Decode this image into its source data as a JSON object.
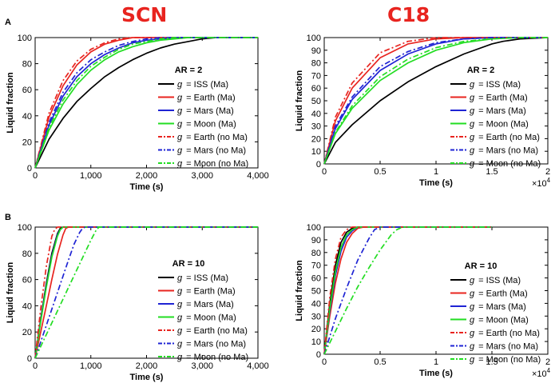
{
  "column_titles": [
    "SCN",
    "C18"
  ],
  "row_labels": [
    "A",
    "B"
  ],
  "colors": {
    "title_red": "#e8241f",
    "iss": "#000000",
    "earth": "#e8241f",
    "mars": "#1f24d4",
    "moon": "#22dd22"
  },
  "chart_data": [
    {
      "type": "line",
      "panel": "A-SCN",
      "title": "",
      "ar_label": "AR = 2",
      "xlabel": "Time (s)",
      "ylabel": "Liquid fraction",
      "xlim": [
        0,
        4000
      ],
      "ylim": [
        0,
        100
      ],
      "xticks": [
        0,
        1000,
        2000,
        3000,
        4000
      ],
      "xtick_labels": [
        "0",
        "1,000",
        "2,000",
        "3,000",
        "4,000"
      ],
      "yticks": [
        0,
        20,
        40,
        60,
        80,
        100
      ],
      "ytick_labels": [
        "0",
        "20",
        "40",
        "60",
        "80",
        "100"
      ],
      "exponent_label": "",
      "legend_placement": "right",
      "series": [
        {
          "name": "= ISS (Ma)",
          "style": "solid",
          "color": "#000000",
          "x": [
            0,
            250,
            500,
            750,
            1000,
            1250,
            1500,
            1750,
            2000,
            2250,
            2500,
            2750,
            3000,
            3250,
            3500,
            4000
          ],
          "y": [
            0,
            22,
            38,
            51,
            61,
            70,
            77,
            83,
            88,
            92,
            95,
            97,
            99,
            100,
            100,
            100
          ]
        },
        {
          "name": "= Earth (Ma)",
          "style": "solid",
          "color": "#e8241f",
          "x": [
            0,
            250,
            500,
            750,
            1000,
            1250,
            1500,
            1750,
            2000,
            2250,
            4000
          ],
          "y": [
            0,
            39,
            63,
            79,
            89,
            95,
            98,
            100,
            100,
            100,
            100
          ]
        },
        {
          "name": "= Mars (Ma)",
          "style": "solid",
          "color": "#1f24d4",
          "x": [
            0,
            250,
            500,
            750,
            1000,
            1250,
            1500,
            1750,
            2000,
            2250,
            2500,
            2750,
            4000
          ],
          "y": [
            0,
            33,
            55,
            70,
            80,
            87,
            92,
            96,
            98,
            99,
            100,
            100,
            100
          ]
        },
        {
          "name": "= Moon (Ma)",
          "style": "solid",
          "color": "#22dd22",
          "x": [
            0,
            250,
            500,
            750,
            1000,
            1250,
            1500,
            1750,
            2000,
            2250,
            2500,
            2750,
            3000,
            3250,
            4000
          ],
          "y": [
            0,
            29,
            49,
            64,
            75,
            83,
            89,
            93,
            96,
            98,
            99,
            100,
            100,
            100,
            100
          ]
        },
        {
          "name": "= Earth (no Ma)",
          "style": "dashdot",
          "color": "#e8241f",
          "x": [
            0,
            250,
            500,
            750,
            1000,
            1250,
            1500,
            1750,
            2000,
            4000
          ],
          "y": [
            0,
            42,
            67,
            82,
            91,
            96,
            99,
            100,
            100,
            100
          ]
        },
        {
          "name": "= Mars (no Ma)",
          "style": "dashdot",
          "color": "#1f24d4",
          "x": [
            0,
            250,
            500,
            750,
            1000,
            1250,
            1500,
            1750,
            2000,
            2250,
            2500,
            4000
          ],
          "y": [
            0,
            35,
            58,
            73,
            83,
            89,
            94,
            97,
            99,
            100,
            100,
            100
          ]
        },
        {
          "name": "= Moon (no Ma)",
          "style": "dashdot",
          "color": "#22dd22",
          "x": [
            0,
            250,
            500,
            750,
            1000,
            1250,
            1500,
            1750,
            2000,
            2250,
            2500,
            2750,
            3000,
            4000
          ],
          "y": [
            0,
            31,
            52,
            67,
            78,
            85,
            91,
            95,
            97,
            99,
            100,
            100,
            100,
            100
          ]
        }
      ]
    },
    {
      "type": "line",
      "panel": "A-C18",
      "title": "",
      "ar_label": "AR = 2",
      "xlabel": "Time (s)",
      "ylabel": "Liquid fraction",
      "xlim": [
        0,
        2
      ],
      "ylim": [
        0,
        100
      ],
      "xticks": [
        0,
        0.5,
        1,
        1.5,
        2
      ],
      "xtick_labels": [
        "0",
        "0.5",
        "1",
        "1.5",
        "2"
      ],
      "yticks": [
        0,
        10,
        20,
        30,
        40,
        50,
        60,
        70,
        80,
        90,
        100
      ],
      "ytick_labels": [
        "0",
        "10",
        "20",
        "30",
        "40",
        "50",
        "60",
        "70",
        "80",
        "90",
        "100"
      ],
      "exponent_label": "×10",
      "exponent_power": "4",
      "legend_placement": "right",
      "series": [
        {
          "name": "= ISS (Ma)",
          "style": "solid",
          "color": "#000000",
          "x": [
            0,
            0.1,
            0.25,
            0.5,
            0.75,
            1,
            1.25,
            1.5,
            1.6,
            1.75,
            2
          ],
          "y": [
            0,
            17,
            31,
            50,
            65,
            77,
            87,
            95,
            97,
            99,
            100
          ]
        },
        {
          "name": "= Earth (Ma)",
          "style": "solid",
          "color": "#e8241f",
          "x": [
            0,
            0.1,
            0.25,
            0.5,
            0.75,
            1,
            1.25,
            2
          ],
          "y": [
            0,
            34,
            60,
            84,
            95,
            99,
            100,
            100
          ]
        },
        {
          "name": "= Mars (Ma)",
          "style": "solid",
          "color": "#1f24d4",
          "x": [
            0,
            0.1,
            0.25,
            0.5,
            0.75,
            1,
            1.25,
            1.5,
            2
          ],
          "y": [
            0,
            28,
            51,
            74,
            87,
            95,
            99,
            100,
            100
          ]
        },
        {
          "name": "= Moon (Ma)",
          "style": "solid",
          "color": "#22dd22",
          "x": [
            0,
            0.1,
            0.25,
            0.5,
            0.75,
            1,
            1.25,
            1.5,
            1.75,
            2
          ],
          "y": [
            0,
            24,
            44,
            66,
            80,
            90,
            96,
            99,
            100,
            100
          ]
        },
        {
          "name": "= Earth (no Ma)",
          "style": "dashdot",
          "color": "#e8241f",
          "x": [
            0,
            0.1,
            0.25,
            0.5,
            0.75,
            1,
            2
          ],
          "y": [
            0,
            37,
            64,
            88,
            97,
            100,
            100
          ]
        },
        {
          "name": "= Mars (no Ma)",
          "style": "dashdot",
          "color": "#1f24d4",
          "x": [
            0,
            0.1,
            0.25,
            0.5,
            0.75,
            1,
            1.25,
            1.5,
            2
          ],
          "y": [
            0,
            30,
            53,
            77,
            89,
            96,
            99,
            100,
            100
          ]
        },
        {
          "name": "= Moon (no Ma)",
          "style": "dashdot",
          "color": "#22dd22",
          "x": [
            0,
            0.1,
            0.25,
            0.5,
            0.75,
            1,
            1.25,
            1.5,
            1.75,
            2
          ],
          "y": [
            0,
            25,
            46,
            69,
            83,
            92,
            97,
            99,
            100,
            100
          ]
        }
      ]
    },
    {
      "type": "line",
      "panel": "B-SCN",
      "title": "",
      "ar_label": "AR = 10",
      "xlabel": "Time (s)",
      "ylabel": "Liquid fraction",
      "xlim": [
        0,
        4000
      ],
      "ylim": [
        0,
        100
      ],
      "xticks": [
        0,
        1000,
        2000,
        3000,
        4000
      ],
      "xtick_labels": [
        "0",
        "1,000",
        "2,000",
        "3,000",
        "4,000"
      ],
      "yticks": [
        0,
        20,
        40,
        60,
        80,
        100
      ],
      "ytick_labels": [
        "0",
        "20",
        "40",
        "60",
        "80",
        "100"
      ],
      "exponent_label": "",
      "legend_placement": "right",
      "series": [
        {
          "name": "= ISS (Ma)",
          "style": "solid",
          "color": "#000000",
          "x": [
            0,
            100,
            200,
            300,
            400,
            450,
            500,
            4000
          ],
          "y": [
            0,
            30,
            57,
            80,
            95,
            99,
            100,
            100
          ]
        },
        {
          "name": "= Earth (Ma)",
          "style": "solid",
          "color": "#e8241f",
          "x": [
            0,
            100,
            200,
            300,
            400,
            500,
            550,
            600,
            4000
          ],
          "y": [
            0,
            20,
            40,
            60,
            79,
            94,
            99,
            100,
            100
          ]
        },
        {
          "name": "= Mars (Ma)",
          "style": "solid",
          "color": "#1f24d4",
          "x": [
            0,
            100,
            200,
            300,
            400,
            450,
            500,
            4000
          ],
          "y": [
            0,
            29,
            55,
            78,
            94,
            98,
            100,
            100
          ]
        },
        {
          "name": "= Moon (Ma)",
          "style": "solid",
          "color": "#22dd22",
          "x": [
            0,
            100,
            200,
            300,
            400,
            450,
            500,
            4000
          ],
          "y": [
            0,
            28,
            54,
            77,
            93,
            98,
            100,
            100
          ]
        },
        {
          "name": "= Earth (no Ma)",
          "style": "dashdot",
          "color": "#e8241f",
          "x": [
            0,
            100,
            200,
            300,
            350,
            400,
            4000
          ],
          "y": [
            0,
            38,
            70,
            93,
            98,
            100,
            100
          ]
        },
        {
          "name": "= Mars (no Ma)",
          "style": "dashdot",
          "color": "#1f24d4",
          "x": [
            0,
            200,
            400,
            600,
            700,
            800,
            850,
            900,
            4000
          ],
          "y": [
            0,
            25,
            50,
            75,
            87,
            96,
            99,
            100,
            100
          ]
        },
        {
          "name": "= Moon (no Ma)",
          "style": "dashdot",
          "color": "#22dd22",
          "x": [
            0,
            200,
            400,
            600,
            800,
            1000,
            1100,
            1150,
            4000
          ],
          "y": [
            0,
            18,
            36,
            54,
            72,
            90,
            98,
            100,
            100
          ]
        }
      ]
    },
    {
      "type": "line",
      "panel": "B-C18",
      "title": "",
      "ar_label": "AR = 10",
      "xlabel": "Time (s)",
      "ylabel": "Liquid fraction",
      "xlim": [
        0,
        2
      ],
      "ylim": [
        0,
        100
      ],
      "xticks": [
        0,
        0.5,
        1,
        1.5,
        2
      ],
      "xtick_labels": [
        "0",
        "0.5",
        "1",
        "1.5",
        "2"
      ],
      "yticks": [
        0,
        10,
        20,
        30,
        40,
        50,
        60,
        70,
        80,
        90,
        100
      ],
      "ytick_labels": [
        "0",
        "10",
        "20",
        "30",
        "40",
        "50",
        "60",
        "70",
        "80",
        "90",
        "100"
      ],
      "exponent_label": "×10",
      "exponent_power": "4",
      "legend_placement": "right",
      "series": [
        {
          "name": "= ISS (Ma)",
          "style": "solid",
          "color": "#000000",
          "x": [
            0,
            0.05,
            0.1,
            0.15,
            0.2,
            0.25,
            0.3,
            1.5
          ],
          "y": [
            0,
            40,
            70,
            88,
            96,
            99,
            100,
            100
          ]
        },
        {
          "name": "= Earth (Ma)",
          "style": "solid",
          "color": "#e8241f",
          "x": [
            0,
            0.05,
            0.1,
            0.15,
            0.2,
            0.25,
            0.3,
            0.35,
            1.5
          ],
          "y": [
            0,
            30,
            56,
            75,
            88,
            95,
            99,
            100,
            100
          ]
        },
        {
          "name": "= Mars (Ma)",
          "style": "solid",
          "color": "#1f24d4",
          "x": [
            0,
            0.05,
            0.1,
            0.15,
            0.2,
            0.25,
            0.3,
            1.5
          ],
          "y": [
            0,
            34,
            62,
            81,
            92,
            97,
            100,
            100
          ]
        },
        {
          "name": "= Moon (Ma)",
          "style": "solid",
          "color": "#22dd22",
          "x": [
            0,
            0.05,
            0.1,
            0.15,
            0.2,
            0.25,
            0.3,
            1.5
          ],
          "y": [
            0,
            36,
            65,
            84,
            94,
            98,
            100,
            100
          ]
        },
        {
          "name": "= Earth (no Ma)",
          "style": "dashdot",
          "color": "#e8241f",
          "x": [
            0,
            0.05,
            0.1,
            0.15,
            0.2,
            0.25,
            1.5
          ],
          "y": [
            0,
            45,
            75,
            92,
            98,
            100,
            100
          ]
        },
        {
          "name": "= Mars (no Ma)",
          "style": "dashdot",
          "color": "#1f24d4",
          "x": [
            0,
            0.1,
            0.2,
            0.3,
            0.4,
            0.45,
            0.5,
            1.5
          ],
          "y": [
            0,
            28,
            52,
            74,
            91,
            98,
            100,
            100
          ]
        },
        {
          "name": "= Moon (no Ma)",
          "style": "dashdot",
          "color": "#22dd22",
          "x": [
            0,
            0.1,
            0.2,
            0.3,
            0.4,
            0.5,
            0.6,
            0.65,
            0.7,
            1.5
          ],
          "y": [
            0,
            18,
            36,
            53,
            68,
            82,
            94,
            98,
            100,
            100
          ]
        }
      ]
    }
  ]
}
